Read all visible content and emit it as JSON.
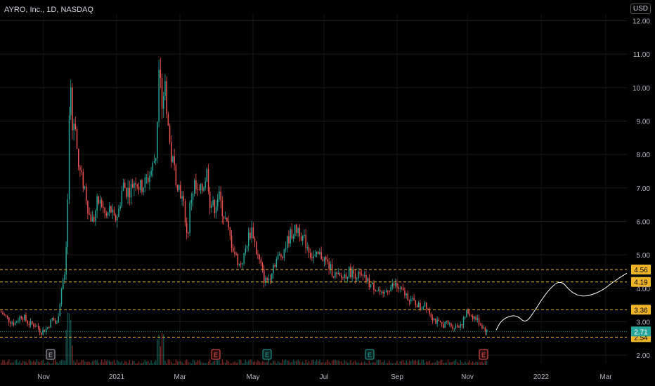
{
  "header": {
    "title": "AYRO, Inc., 1D, NASDAQ",
    "currency": "USD"
  },
  "colors": {
    "up": "#26a69a",
    "down": "#ef5350",
    "level_line": "#f0b429",
    "last_price": "#26a69a",
    "background": "#000000",
    "projection": "#ffffff"
  },
  "chart_data": {
    "type": "candlestick",
    "title": "AYRO, Inc., 1D, NASDAQ",
    "ylim": [
      1.75,
      12.2
    ],
    "y_ticks": [
      "12.00",
      "11.00",
      "10.00",
      "9.00",
      "8.00",
      "7.00",
      "6.00",
      "5.00",
      "4.00",
      "3.00",
      "2.00"
    ],
    "x_ticks": [
      "Nov",
      "2021",
      "Mar",
      "May",
      "Jul",
      "Sep",
      "Nov",
      "2022",
      "Mar"
    ],
    "levels": [
      4.56,
      4.19,
      3.36,
      2.54
    ],
    "level_labels": [
      "4.56",
      "4.19",
      "3.36",
      "2.54"
    ],
    "last_price": 2.71,
    "last_price_label": "2.71",
    "earnings_markers": [
      {
        "label": "E",
        "kind": "past"
      },
      {
        "label": "E",
        "kind": "miss"
      },
      {
        "label": "E",
        "kind": "beat"
      },
      {
        "label": "E",
        "kind": "beat"
      },
      {
        "label": "E",
        "kind": "miss"
      }
    ],
    "price_path": [
      [
        0,
        3.3
      ],
      [
        12,
        3.05
      ],
      [
        20,
        2.95
      ],
      [
        30,
        3.2
      ],
      [
        40,
        2.95
      ],
      [
        50,
        2.9
      ],
      [
        58,
        2.7
      ],
      [
        66,
        2.8
      ],
      [
        74,
        3.1
      ],
      [
        80,
        2.9
      ],
      [
        84,
        3.5
      ],
      [
        88,
        4.2
      ],
      [
        92,
        4.4
      ],
      [
        96,
        6.8
      ],
      [
        99,
        10.6
      ],
      [
        102,
        8.7
      ],
      [
        106,
        9.2
      ],
      [
        110,
        7.7
      ],
      [
        115,
        7.3
      ],
      [
        120,
        7.0
      ],
      [
        126,
        6.2
      ],
      [
        132,
        6.0
      ],
      [
        138,
        6.6
      ],
      [
        144,
        6.5
      ],
      [
        150,
        6.1
      ],
      [
        156,
        6.4
      ],
      [
        162,
        6.0
      ],
      [
        168,
        6.3
      ],
      [
        174,
        7.1
      ],
      [
        180,
        6.9
      ],
      [
        186,
        7.0
      ],
      [
        192,
        7.3
      ],
      [
        198,
        7.0
      ],
      [
        204,
        7.1
      ],
      [
        210,
        7.3
      ],
      [
        216,
        7.6
      ],
      [
        222,
        8.1
      ],
      [
        226,
        11.4
      ],
      [
        230,
        9.4
      ],
      [
        234,
        10.2
      ],
      [
        238,
        9.0
      ],
      [
        242,
        8.0
      ],
      [
        246,
        7.7
      ],
      [
        250,
        7.3
      ],
      [
        256,
        6.9
      ],
      [
        262,
        6.3
      ],
      [
        266,
        5.4
      ],
      [
        270,
        6.6
      ],
      [
        276,
        7.1
      ],
      [
        280,
        6.8
      ],
      [
        286,
        6.9
      ],
      [
        290,
        7.2
      ],
      [
        294,
        7.5
      ],
      [
        298,
        6.6
      ],
      [
        304,
        6.4
      ],
      [
        310,
        6.8
      ],
      [
        316,
        6.3
      ],
      [
        322,
        5.9
      ],
      [
        328,
        5.4
      ],
      [
        334,
        5.0
      ],
      [
        340,
        4.7
      ],
      [
        346,
        4.9
      ],
      [
        352,
        5.5
      ],
      [
        358,
        5.8
      ],
      [
        364,
        5.1
      ],
      [
        370,
        4.7
      ],
      [
        376,
        4.2
      ],
      [
        382,
        4.3
      ],
      [
        388,
        4.7
      ],
      [
        394,
        4.9
      ],
      [
        400,
        5.0
      ],
      [
        406,
        5.3
      ],
      [
        412,
        5.6
      ],
      [
        418,
        5.7
      ],
      [
        424,
        5.8
      ],
      [
        430,
        5.5
      ],
      [
        436,
        5.3
      ],
      [
        442,
        5.0
      ],
      [
        448,
        4.9
      ],
      [
        454,
        5.0
      ],
      [
        460,
        4.9
      ],
      [
        466,
        4.7
      ],
      [
        472,
        4.5
      ],
      [
        478,
        4.35
      ],
      [
        484,
        4.3
      ],
      [
        490,
        4.4
      ],
      [
        496,
        4.5
      ],
      [
        502,
        4.45
      ],
      [
        508,
        4.4
      ],
      [
        514,
        4.3
      ],
      [
        520,
        4.25
      ],
      [
        526,
        4.1
      ],
      [
        532,
        4.05
      ],
      [
        538,
        3.95
      ],
      [
        544,
        3.7
      ],
      [
        550,
        4.0
      ],
      [
        556,
        4.05
      ],
      [
        562,
        4.1
      ],
      [
        568,
        3.95
      ],
      [
        574,
        3.85
      ],
      [
        580,
        3.75
      ],
      [
        586,
        3.6
      ],
      [
        592,
        3.55
      ],
      [
        598,
        3.4
      ],
      [
        604,
        3.6
      ],
      [
        610,
        3.3
      ],
      [
        616,
        3.1
      ],
      [
        622,
        2.95
      ],
      [
        628,
        2.9
      ],
      [
        634,
        2.95
      ],
      [
        640,
        2.9
      ],
      [
        646,
        2.85
      ],
      [
        652,
        2.9
      ],
      [
        658,
        3.0
      ],
      [
        664,
        3.3
      ],
      [
        670,
        3.2
      ],
      [
        676,
        3.1
      ],
      [
        682,
        2.95
      ],
      [
        688,
        2.8
      ],
      [
        692,
        2.71
      ]
    ]
  }
}
